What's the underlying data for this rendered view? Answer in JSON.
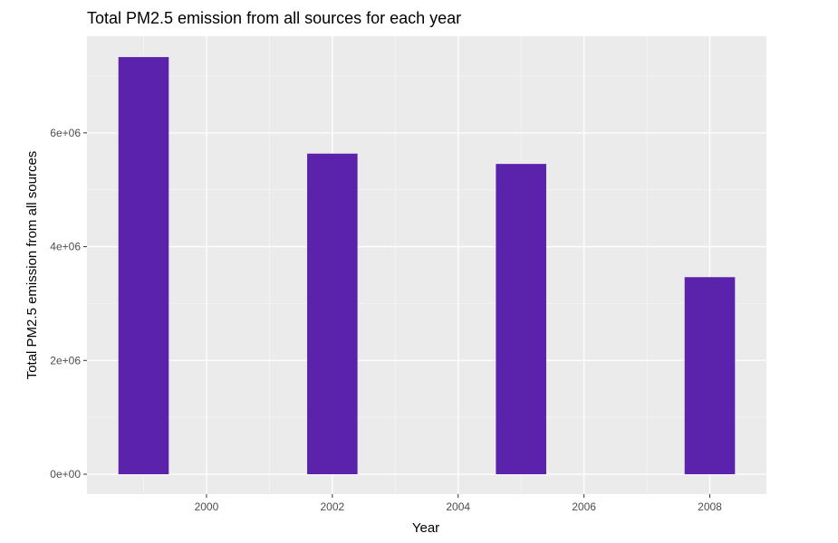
{
  "chart_data": {
    "type": "bar",
    "title": "Total PM2.5 emission from all sources for each year",
    "xlabel": "Year",
    "ylabel": "Total PM2.5 emission from all sources",
    "x": [
      1999,
      2002,
      2005,
      2008
    ],
    "values": [
      7332967,
      5635780,
      5454703,
      3464206
    ],
    "xlim": [
      1998.1,
      2008.9
    ],
    "ylim": [
      -350000,
      7700000
    ],
    "x_ticks": [
      2000,
      2002,
      2004,
      2006,
      2008
    ],
    "x_tick_labels": [
      "2000",
      "2002",
      "2004",
      "2006",
      "2008"
    ],
    "y_ticks": [
      0,
      2000000,
      4000000,
      6000000
    ],
    "y_tick_labels": [
      "0e+00",
      "2e+06",
      "4e+06",
      "6e+06"
    ],
    "bar_width_years": 0.8,
    "grid": true,
    "legend": "none",
    "colors": {
      "bar": "#5b22ac",
      "panel_background": "#ebebeb",
      "grid_major": "#ffffff",
      "grid_minor": "#f5f5f5"
    }
  }
}
